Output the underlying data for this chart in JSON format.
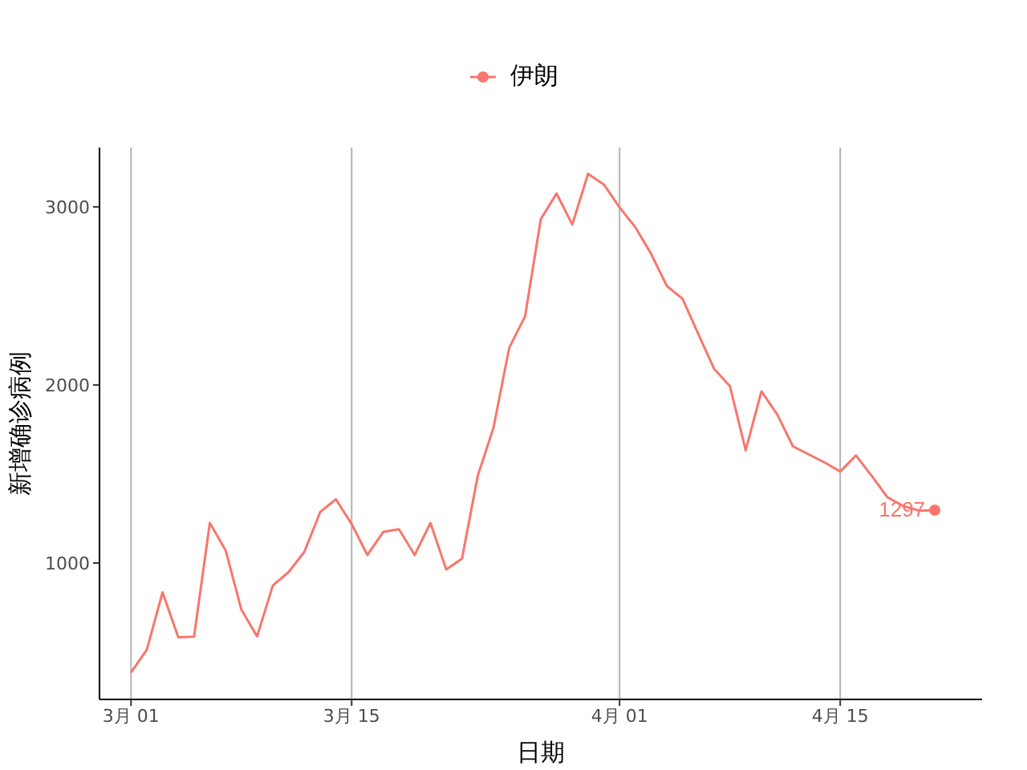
{
  "chart_data": {
    "type": "line",
    "xlabel": "日期",
    "ylabel": "新增确诊病例",
    "legend": "top",
    "grid": "x",
    "x": [
      "--03-01",
      "--03-02",
      "--03-03",
      "--03-04",
      "--03-05",
      "--03-06",
      "--03-07",
      "--03-08",
      "--03-09",
      "--03-10",
      "--03-11",
      "--03-12",
      "--03-13",
      "--03-14",
      "--03-15",
      "--03-16",
      "--03-17",
      "--03-18",
      "--03-19",
      "--03-20",
      "--03-21",
      "--03-22",
      "--03-23",
      "--03-24",
      "--03-25",
      "--03-26",
      "--03-27",
      "--03-28",
      "--03-29",
      "--03-30",
      "--03-31",
      "--04-01",
      "--04-02",
      "--04-03",
      "--04-04",
      "--04-05",
      "--04-06",
      "--04-07",
      "--04-08",
      "--04-09",
      "--04-10",
      "--04-11",
      "--04-12",
      "--04-13",
      "--04-14",
      "--04-15",
      "--04-16",
      "--04-17",
      "--04-18",
      "--04-19",
      "--04-20",
      "--04-21"
    ],
    "xlim": [
      "--02-27",
      "--04-24"
    ],
    "xticks": [
      {
        "value": "--03-01",
        "label": "3月 01"
      },
      {
        "value": "--03-15",
        "label": "3月 15"
      },
      {
        "value": "--04-01",
        "label": "4月 01"
      },
      {
        "value": "--04-15",
        "label": "4月 15"
      }
    ],
    "ylim": [
      234,
      3333
    ],
    "yticks": [
      1000,
      2000,
      3000
    ],
    "series": [
      {
        "name": "伊朗",
        "color": "#f8766d",
        "values": [
          385,
          513,
          835,
          583,
          586,
          1225,
          1072,
          739,
          588,
          874,
          949,
          1063,
          1286,
          1358,
          1219,
          1045,
          1174,
          1190,
          1045,
          1225,
          964,
          1024,
          1489,
          1760,
          2210,
          2384,
          2931,
          3075,
          2901,
          3186,
          3126,
          2997,
          2886,
          2736,
          2556,
          2483,
          2285,
          2090,
          1994,
          1633,
          1964,
          1835,
          1655,
          1610,
          1565,
          1514,
          1604,
          1489,
          1369,
          1320,
          1294,
          1297
        ],
        "value_labels": [
          null,
          null,
          null,
          null,
          null,
          null,
          null,
          null,
          null,
          null,
          null,
          null,
          null,
          null,
          null,
          null,
          null,
          null,
          null,
          null,
          null,
          null,
          null,
          null,
          null,
          null,
          null,
          null,
          null,
          null,
          null,
          null,
          null,
          null,
          null,
          null,
          null,
          null,
          null,
          null,
          null,
          null,
          null,
          null,
          null,
          null,
          null,
          null,
          null,
          null,
          null,
          "1297"
        ]
      }
    ]
  }
}
